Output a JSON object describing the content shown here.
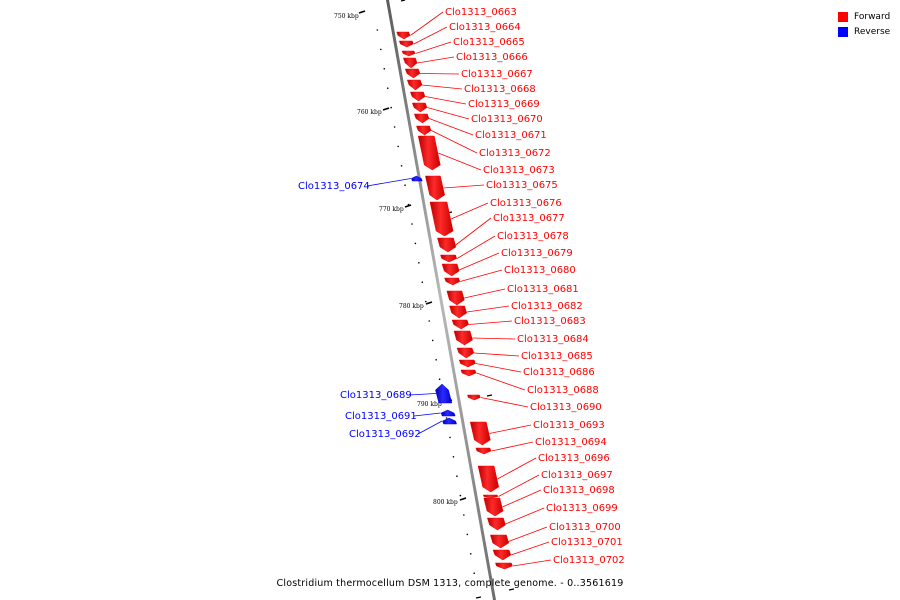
{
  "caption": "Clostridium thermocellum DSM 1313, complete genome. - 0..3561619",
  "legend": [
    {
      "label": "Forward",
      "color": "#ff0000"
    },
    {
      "label": "Reverse",
      "color": "#0000ff"
    }
  ],
  "colors": {
    "forward": "#ff0000",
    "reverse": "#0000ff",
    "backbone": "#808080",
    "tick": "#000000"
  },
  "ticks": [
    {
      "label": "750 kbp",
      "kbp": 750
    },
    {
      "label": "760 kbp",
      "kbp": 760
    },
    {
      "label": "770 kbp",
      "kbp": 770
    },
    {
      "label": "780 kbp",
      "kbp": 780
    },
    {
      "label": "790 kbp",
      "kbp": 790
    },
    {
      "label": "800 kbp",
      "kbp": 800
    }
  ],
  "genes": [
    {
      "name": "Clo1313_0663",
      "strand": "forward"
    },
    {
      "name": "Clo1313_0664",
      "strand": "forward"
    },
    {
      "name": "Clo1313_0665",
      "strand": "forward"
    },
    {
      "name": "Clo1313_0666",
      "strand": "forward"
    },
    {
      "name": "Clo1313_0667",
      "strand": "forward"
    },
    {
      "name": "Clo1313_0668",
      "strand": "forward"
    },
    {
      "name": "Clo1313_0669",
      "strand": "forward"
    },
    {
      "name": "Clo1313_0670",
      "strand": "forward"
    },
    {
      "name": "Clo1313_0671",
      "strand": "forward"
    },
    {
      "name": "Clo1313_0672",
      "strand": "forward"
    },
    {
      "name": "Clo1313_0673",
      "strand": "forward"
    },
    {
      "name": "Clo1313_0674",
      "strand": "reverse"
    },
    {
      "name": "Clo1313_0675",
      "strand": "forward"
    },
    {
      "name": "Clo1313_0676",
      "strand": "forward"
    },
    {
      "name": "Clo1313_0677",
      "strand": "forward"
    },
    {
      "name": "Clo1313_0678",
      "strand": "forward"
    },
    {
      "name": "Clo1313_0679",
      "strand": "forward"
    },
    {
      "name": "Clo1313_0680",
      "strand": "forward"
    },
    {
      "name": "Clo1313_0681",
      "strand": "forward"
    },
    {
      "name": "Clo1313_0682",
      "strand": "forward"
    },
    {
      "name": "Clo1313_0683",
      "strand": "forward"
    },
    {
      "name": "Clo1313_0684",
      "strand": "forward"
    },
    {
      "name": "Clo1313_0685",
      "strand": "forward"
    },
    {
      "name": "Clo1313_0686",
      "strand": "forward"
    },
    {
      "name": "Clo1313_0688",
      "strand": "forward"
    },
    {
      "name": "Clo1313_0689",
      "strand": "reverse"
    },
    {
      "name": "Clo1313_0690",
      "strand": "forward"
    },
    {
      "name": "Clo1313_0691",
      "strand": "reverse"
    },
    {
      "name": "Clo1313_0692",
      "strand": "reverse"
    },
    {
      "name": "Clo1313_0693",
      "strand": "forward"
    },
    {
      "name": "Clo1313_0694",
      "strand": "forward"
    },
    {
      "name": "Clo1313_0696",
      "strand": "forward"
    },
    {
      "name": "Clo1313_0697",
      "strand": "forward"
    },
    {
      "name": "Clo1313_0698",
      "strand": "forward"
    },
    {
      "name": "Clo1313_0699",
      "strand": "forward"
    },
    {
      "name": "Clo1313_0700",
      "strand": "forward"
    },
    {
      "name": "Clo1313_0701",
      "strand": "forward"
    },
    {
      "name": "Clo1313_0702",
      "strand": "forward"
    }
  ]
}
